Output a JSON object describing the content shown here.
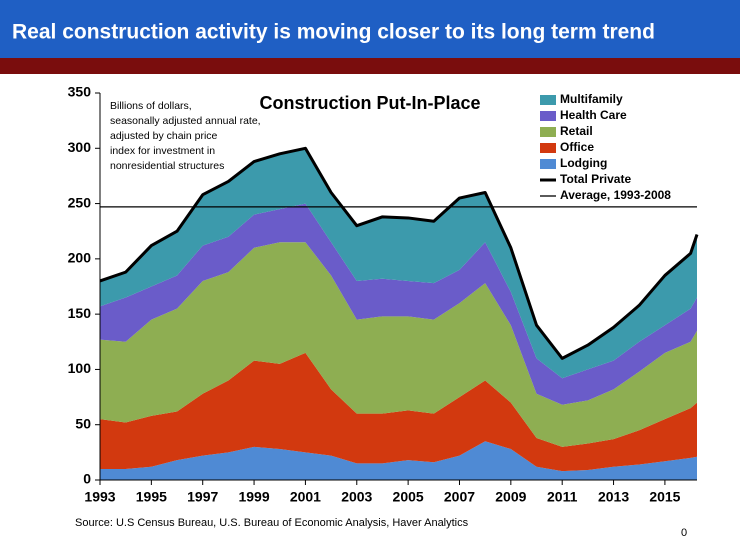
{
  "slide_title": "Real construction activity is moving closer to its long term trend",
  "source": "Source: U.S Census Bureau, U.S. Bureau of Economic Analysis, Haver Analytics",
  "page_number": 0,
  "chart_data": {
    "type": "stacked_area",
    "title": "Construction Put-In-Place",
    "note": [
      "Billions of dollars,",
      "seasonally adjusted annual rate,",
      "adjusted by chain price",
      "index for investment in",
      "nonresidential structures"
    ],
    "x": [
      1993,
      1994,
      1995,
      1996,
      1997,
      1998,
      1999,
      2000,
      2001,
      2002,
      2003,
      2004,
      2005,
      2006,
      2007,
      2008,
      2009,
      2010,
      2011,
      2012,
      2013,
      2014,
      2015,
      2016,
      2016.25
    ],
    "series": [
      {
        "name": "Lodging",
        "color": "#4f8ad4",
        "values": [
          10,
          10,
          12,
          18,
          22,
          25,
          30,
          28,
          25,
          22,
          15,
          15,
          18,
          16,
          22,
          35,
          28,
          12,
          8,
          9,
          12,
          14,
          17,
          20,
          21
        ]
      },
      {
        "name": "Office",
        "color": "#d2390f",
        "values": [
          45,
          42,
          46,
          44,
          56,
          65,
          78,
          77,
          90,
          60,
          45,
          45,
          45,
          44,
          53,
          55,
          42,
          26,
          22,
          24,
          25,
          31,
          38,
          45,
          49
        ]
      },
      {
        "name": "Retail",
        "color": "#8eae52",
        "values": [
          72,
          73,
          87,
          93,
          102,
          98,
          102,
          110,
          100,
          103,
          85,
          88,
          85,
          85,
          85,
          88,
          70,
          40,
          38,
          39,
          45,
          53,
          60,
          60,
          65
        ]
      },
      {
        "name": "Health Care",
        "color": "#6a5cc9",
        "values": [
          30,
          40,
          30,
          30,
          32,
          32,
          30,
          30,
          35,
          30,
          35,
          34,
          32,
          33,
          30,
          37,
          30,
          32,
          24,
          28,
          26,
          27,
          25,
          30,
          30
        ]
      },
      {
        "name": "Multifamily",
        "color": "#3c9aac",
        "values": [
          23,
          23,
          37,
          40,
          46,
          50,
          48,
          50,
          50,
          45,
          50,
          56,
          57,
          56,
          65,
          45,
          40,
          30,
          18,
          22,
          30,
          33,
          45,
          50,
          57
        ]
      }
    ],
    "lines": [
      {
        "name": "Total Private",
        "color": "#000000",
        "values": [
          180,
          188,
          212,
          225,
          258,
          270,
          288,
          295,
          300,
          260,
          230,
          238,
          237,
          234,
          255,
          260,
          210,
          140,
          110,
          122,
          138,
          158,
          185,
          205,
          222
        ]
      }
    ],
    "reference_lines": [
      {
        "name": "Average, 1993-2008",
        "color": "#000000",
        "value": 247
      }
    ],
    "xlim": [
      1993,
      2016.25
    ],
    "xticks": [
      1993,
      1995,
      1997,
      1999,
      2001,
      2003,
      2005,
      2007,
      2009,
      2011,
      2013,
      2015
    ],
    "ylim": [
      0,
      350
    ],
    "yticks": [
      0,
      50,
      100,
      150,
      200,
      250,
      300,
      350
    ]
  }
}
